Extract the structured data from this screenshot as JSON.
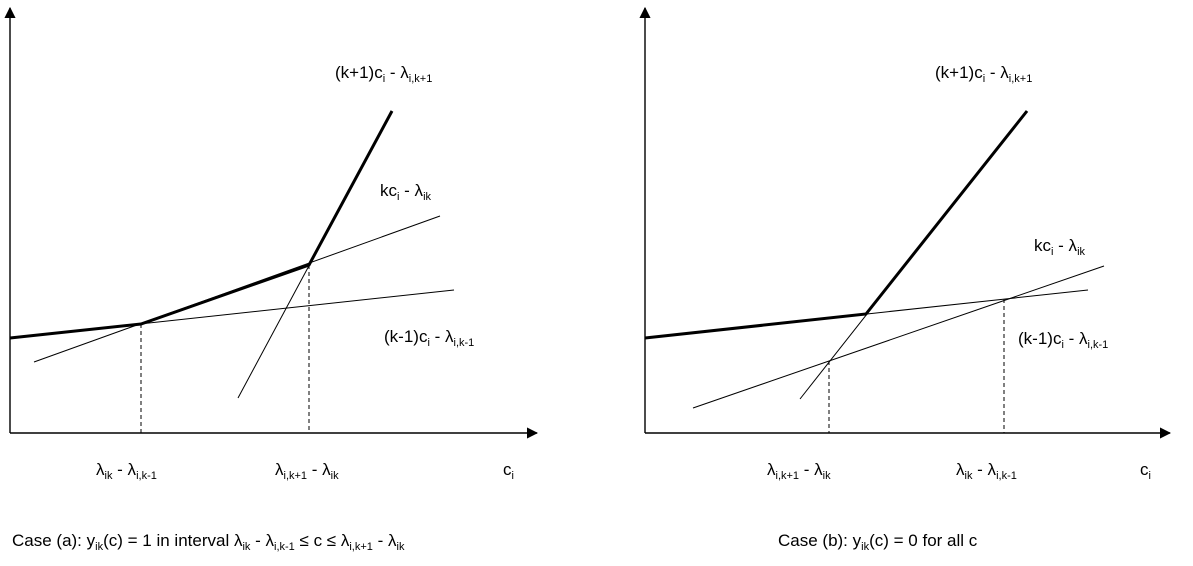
{
  "panel_a": {
    "label_upper": {
      "pre": "(k+1)c",
      "s1": "i",
      "mid": " - λ",
      "s2": "i,k+1"
    },
    "label_mid": {
      "pre": "kc",
      "s1": "i",
      "mid": " - λ",
      "s2": "ik"
    },
    "label_lower": {
      "pre": "(k-1)c",
      "s1": "i",
      "mid": " - λ",
      "s2": "i,k-1"
    },
    "tick1": {
      "a": "λ",
      "s1": "ik",
      "b": " - λ",
      "s2": "i,k-1"
    },
    "tick2": {
      "a": "λ",
      "s1": "i,k+1",
      "b": " - λ",
      "s2": "ik"
    },
    "axis_x": {
      "a": "c",
      "s1": "i"
    },
    "caption": {
      "t1": "Case (a): y",
      "s1": "ik",
      "t2": "(c) = 1 in interval λ",
      "s2": "ik",
      "t3": " - λ",
      "s3": "i,k-1",
      "t4": " ≤ c ≤ λ",
      "s4": "i,k+1",
      "t5": " - λ",
      "s5": "ik"
    }
  },
  "panel_b": {
    "label_upper": {
      "pre": "(k+1)c",
      "s1": "i",
      "mid": " - λ",
      "s2": "i,k+1"
    },
    "label_mid": {
      "pre": "kc",
      "s1": "i",
      "mid": " - λ",
      "s2": "ik"
    },
    "label_lower": {
      "pre": "(k-1)c",
      "s1": "i",
      "mid": " - λ",
      "s2": "i,k-1"
    },
    "tick1": {
      "a": "λ",
      "s1": "i,k+1",
      "b": " - λ",
      "s2": "ik"
    },
    "tick2": {
      "a": "λ",
      "s1": "ik",
      "b": " - λ",
      "s2": "i,k-1"
    },
    "axis_x": {
      "a": "c",
      "s1": "i"
    },
    "caption": {
      "t1": "Case (b): y",
      "s1": "ik",
      "t2": "(c) = 0 for all c"
    }
  }
}
